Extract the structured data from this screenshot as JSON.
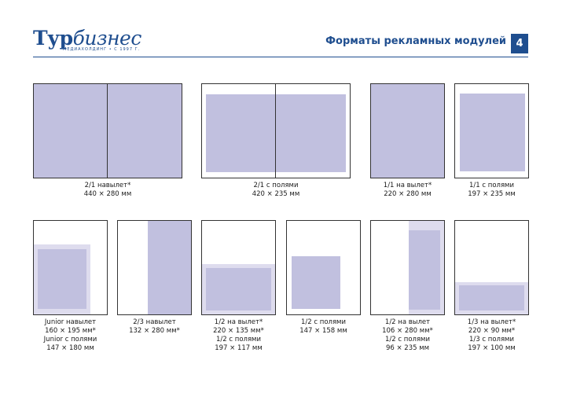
{
  "header": {
    "logo_main": "Тур",
    "logo_rest": "бизнес",
    "logo_sub": "МЕДИАХОЛДИНГ • С 1997 Г.",
    "title": "Форматы рекламных модулей",
    "page_number": "4"
  },
  "formats": [
    {
      "line1": "2/1 навылет*",
      "line2": "440 × 280 мм"
    },
    {
      "line1": "2/1 с полями",
      "line2": "420 × 235 мм"
    },
    {
      "line1": "1/1 на вылет*",
      "line2": "220 × 280 мм"
    },
    {
      "line1": "1/1 с полями",
      "line2": "197 × 235 мм"
    },
    {
      "line1": "Junior навылет",
      "line2": "160 × 195 мм*",
      "line3": "Junior с полями",
      "line4": "147 × 180 мм"
    },
    {
      "line1": "2/3 навылет",
      "line2": "132 × 280 мм*"
    },
    {
      "line1": "1/2 на вылет*",
      "line2": "220 × 135 мм*",
      "line3": "1/2 с полями",
      "line4": "197 × 117 мм"
    },
    {
      "line1": "1/2 с полями",
      "line2": "147 × 158 мм"
    },
    {
      "line1": "1/2 на вылет",
      "line2": "106 × 280 мм*",
      "line3": "1/2 с полями",
      "line4": "96 × 235 мм"
    },
    {
      "line1": "1/3 на вылет*",
      "line2": "220 × 90 мм*",
      "line3": "1/3 с полями",
      "line4": "197 × 100 мм"
    }
  ]
}
